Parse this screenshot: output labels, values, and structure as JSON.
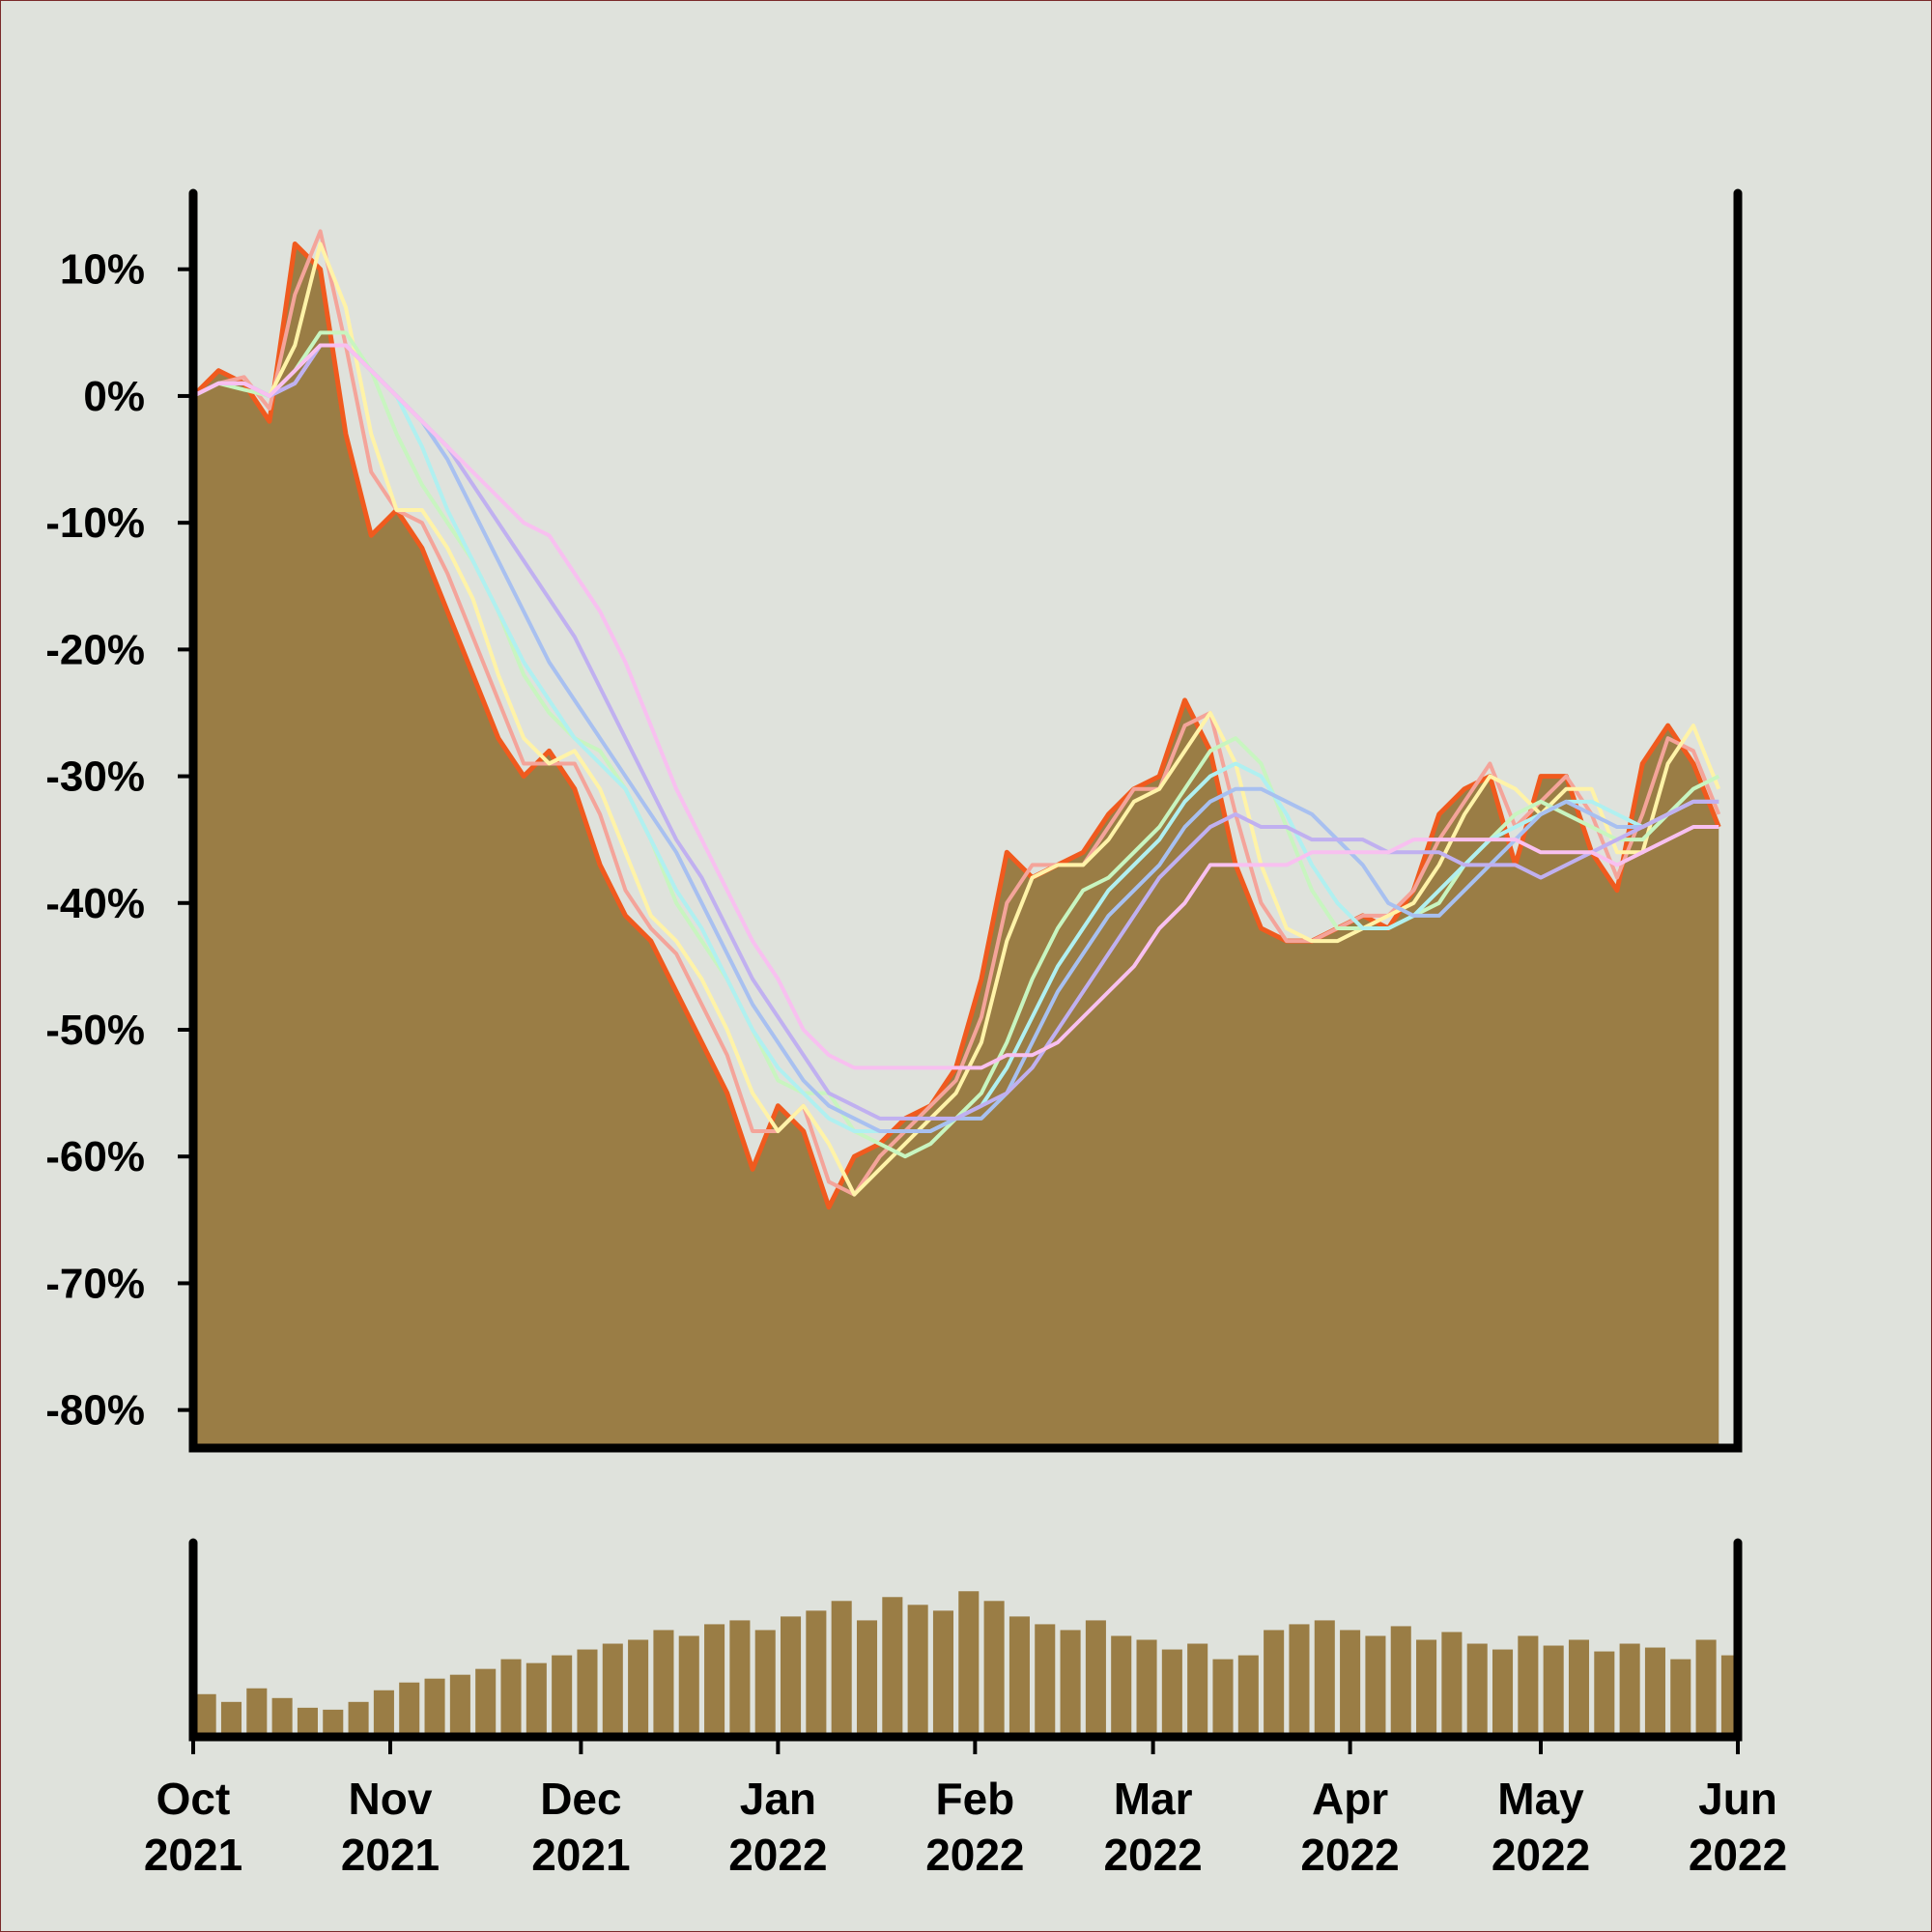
{
  "chart_data": [
    {
      "type": "area",
      "x": [
        0,
        4,
        8,
        12,
        16,
        20,
        24,
        28,
        32,
        36,
        40,
        44,
        48,
        52,
        56,
        60,
        64,
        68,
        72,
        76,
        80,
        84,
        88,
        92,
        96,
        100,
        104,
        108,
        112,
        116,
        120,
        124,
        128,
        132,
        136,
        140,
        144,
        148,
        152,
        156,
        160,
        164,
        168,
        172,
        176,
        180,
        184,
        188,
        192,
        196,
        200,
        204,
        208,
        212,
        216,
        220,
        224,
        228,
        232,
        236,
        240
      ],
      "xlim": [
        0,
        243
      ],
      "ylim": [
        -83,
        16
      ],
      "yticks": [
        {
          "value": 10,
          "label": "10%"
        },
        {
          "value": 0,
          "label": "0%"
        },
        {
          "value": -10,
          "label": "-10%"
        },
        {
          "value": -20,
          "label": "-20%"
        },
        {
          "value": -30,
          "label": "-30%"
        },
        {
          "value": -40,
          "label": "-40%"
        },
        {
          "value": -50,
          "label": "-50%"
        },
        {
          "value": -60,
          "label": "-60%"
        },
        {
          "value": -70,
          "label": "-70%"
        },
        {
          "value": -80,
          "label": "-80%"
        }
      ],
      "area_color": "#9a7d45",
      "series": [
        {
          "color": "#f05a1e",
          "values": [
            0,
            2,
            1,
            -2,
            12,
            10,
            -3,
            -11,
            -9,
            -12,
            -17,
            -22,
            -27,
            -30,
            -28,
            -31,
            -37,
            -41,
            -43,
            -47,
            -51,
            -55,
            -61,
            -56,
            -58,
            -64,
            -60,
            -59,
            -57,
            -56,
            -53,
            -46,
            -36,
            -38,
            -37,
            -36,
            -33,
            -31,
            -30,
            -24,
            -28,
            -37,
            -42,
            -43,
            -43,
            -42,
            -41,
            -42,
            -39,
            -33,
            -31,
            -30,
            -37,
            -30,
            -30,
            -36,
            -39,
            -29,
            -26,
            -29,
            -34
          ]
        },
        {
          "color": "#f4a49a",
          "values": [
            0,
            1,
            1.5,
            -1,
            8,
            13,
            4,
            -6,
            -9,
            -10,
            -14,
            -19,
            -24,
            -29,
            -29,
            -29,
            -33,
            -39,
            -42,
            -44,
            -48,
            -52,
            -58,
            -58,
            -56,
            -62,
            -63,
            -60,
            -58,
            -56,
            -54,
            -49,
            -40,
            -37,
            -37,
            -37,
            -34,
            -31,
            -31,
            -26,
            -25,
            -33,
            -40,
            -43,
            -43,
            -42,
            -41,
            -41,
            -39,
            -35,
            -32,
            -29,
            -34,
            -32,
            -30,
            -33,
            -38,
            -33,
            -27,
            -28,
            -33
          ]
        },
        {
          "color": "#fff3a8",
          "values": [
            0,
            1,
            1,
            0,
            4,
            12,
            7,
            -3,
            -9,
            -9,
            -12,
            -16,
            -22,
            -27,
            -29,
            -28,
            -31,
            -36,
            -41,
            -43,
            -46,
            -50,
            -55,
            -58,
            -56,
            -59,
            -63,
            -61,
            -59,
            -57,
            -55,
            -51,
            -43,
            -38,
            -37,
            -37,
            -35,
            -32,
            -31,
            -28,
            -25,
            -29,
            -37,
            -42,
            -43,
            -43,
            -42,
            -41,
            -40,
            -37,
            -33,
            -30,
            -31,
            -33,
            -31,
            -31,
            -36,
            -36,
            -29,
            -26,
            -31
          ]
        },
        {
          "color": "#c8f5c0",
          "values": [
            0,
            1,
            0.5,
            0,
            2,
            5,
            5,
            2,
            -3,
            -7,
            -10,
            -13,
            -17,
            -22,
            -25,
            -27,
            -28,
            -31,
            -35,
            -40,
            -43,
            -46,
            -50,
            -54,
            -55,
            -55,
            -58,
            -59,
            -60,
            -59,
            -57,
            -55,
            -51,
            -46,
            -42,
            -39,
            -38,
            -36,
            -34,
            -31,
            -28,
            -27,
            -29,
            -34,
            -39,
            -42,
            -42,
            -42,
            -41,
            -40,
            -37,
            -35,
            -33,
            -32,
            -33,
            -34,
            -35,
            -35,
            -33,
            -31,
            -30
          ]
        },
        {
          "color": "#b0f0f0",
          "values": [
            0,
            1,
            1,
            0,
            1,
            4,
            4,
            2,
            0,
            -4,
            -9,
            -13,
            -17,
            -21,
            -24,
            -27,
            -29,
            -31,
            -35,
            -39,
            -42,
            -46,
            -50,
            -53,
            -55,
            -57,
            -58,
            -58,
            -58,
            -58,
            -57,
            -56,
            -53,
            -49,
            -45,
            -42,
            -39,
            -37,
            -35,
            -32,
            -30,
            -29,
            -30,
            -33,
            -37,
            -40,
            -42,
            -42,
            -41,
            -39,
            -37,
            -35,
            -34,
            -33,
            -32,
            -32,
            -33,
            -34,
            -33,
            -32,
            -32
          ]
        },
        {
          "color": "#a8c0f0",
          "values": [
            0,
            1,
            1,
            0,
            1,
            4,
            4,
            2,
            0,
            -2,
            -5,
            -9,
            -13,
            -17,
            -21,
            -24,
            -27,
            -30,
            -33,
            -36,
            -40,
            -44,
            -48,
            -51,
            -54,
            -56,
            -57,
            -58,
            -58,
            -58,
            -57,
            -57,
            -55,
            -51,
            -47,
            -44,
            -41,
            -39,
            -37,
            -34,
            -32,
            -31,
            -31,
            -32,
            -33,
            -35,
            -37,
            -40,
            -41,
            -41,
            -39,
            -37,
            -35,
            -33,
            -32,
            -33,
            -34,
            -34,
            -33,
            -32,
            -32
          ]
        },
        {
          "color": "#c0b0f0",
          "values": [
            0,
            1,
            1,
            0,
            1,
            4,
            4,
            2,
            0,
            -2,
            -4,
            -7,
            -10,
            -13,
            -16,
            -19,
            -23,
            -27,
            -31,
            -35,
            -38,
            -42,
            -46,
            -49,
            -52,
            -55,
            -56,
            -57,
            -57,
            -57,
            -57,
            -56,
            -55,
            -53,
            -50,
            -47,
            -44,
            -41,
            -38,
            -36,
            -34,
            -33,
            -34,
            -34,
            -35,
            -35,
            -35,
            -36,
            -36,
            -36,
            -37,
            -37,
            -37,
            -38,
            -37,
            -36,
            -35,
            -34,
            -33,
            -32,
            -32
          ]
        },
        {
          "color": "#f8c0f0",
          "values": [
            0,
            1,
            1,
            0,
            2,
            4,
            4,
            2,
            0,
            -2,
            -4,
            -6,
            -8,
            -10,
            -11,
            -14,
            -17,
            -21,
            -26,
            -31,
            -35,
            -39,
            -43,
            -46,
            -50,
            -52,
            -53,
            -53,
            -53,
            -53,
            -53,
            -53,
            -52,
            -52,
            -51,
            -49,
            -47,
            -45,
            -42,
            -40,
            -37,
            -37,
            -37,
            -37,
            -36,
            -36,
            -36,
            -36,
            -35,
            -35,
            -35,
            -35,
            -35,
            -36,
            -36,
            -36,
            -37,
            -36,
            -35,
            -34,
            -34
          ]
        }
      ]
    },
    {
      "type": "bar",
      "x": [
        0,
        4,
        8,
        12,
        16,
        20,
        24,
        28,
        32,
        36,
        40,
        44,
        48,
        52,
        56,
        60,
        64,
        68,
        72,
        76,
        80,
        84,
        88,
        92,
        96,
        100,
        104,
        108,
        112,
        116,
        120,
        124,
        128,
        132,
        136,
        140,
        144,
        148,
        152,
        156,
        160,
        164,
        168,
        172,
        176,
        180,
        184,
        188,
        192,
        196,
        200,
        204,
        208,
        212,
        216,
        220,
        224,
        228,
        232,
        236,
        240
      ],
      "xlim": [
        0,
        243
      ],
      "ylim": [
        0,
        100
      ],
      "color": "#9a7d45",
      "values": [
        22,
        18,
        25,
        20,
        15,
        14,
        18,
        24,
        28,
        30,
        32,
        35,
        40,
        38,
        42,
        45,
        48,
        50,
        55,
        52,
        58,
        60,
        55,
        62,
        65,
        70,
        60,
        72,
        68,
        65,
        75,
        70,
        62,
        58,
        55,
        60,
        52,
        50,
        45,
        48,
        40,
        42,
        55,
        58,
        60,
        55,
        52,
        57,
        50,
        54,
        48,
        45,
        52,
        47,
        50,
        44,
        48,
        46,
        40,
        50,
        42
      ],
      "xticks": [
        {
          "value": 0,
          "label": "Oct 2021"
        },
        {
          "value": 31,
          "label": "Nov 2021"
        },
        {
          "value": 61,
          "label": "Dec 2021"
        },
        {
          "value": 92,
          "label": "Jan 2022"
        },
        {
          "value": 123,
          "label": "Feb 2022"
        },
        {
          "value": 151,
          "label": "Mar 2022"
        },
        {
          "value": 182,
          "label": "Apr 2022"
        },
        {
          "value": 212,
          "label": "May 2022"
        },
        {
          "value": 243,
          "label": "Jun 2022"
        }
      ]
    }
  ]
}
